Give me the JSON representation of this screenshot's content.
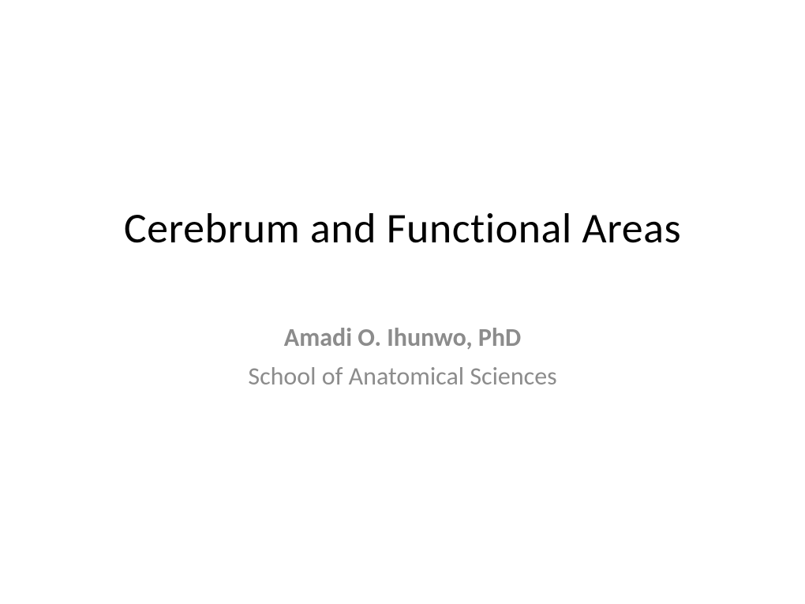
{
  "slide": {
    "title": "Cerebrum and Functional Areas",
    "author": "Amadi O. Ihunwo, PhD",
    "affiliation": "School of Anatomical Sciences",
    "background_color": "#ffffff",
    "title_color": "#000000",
    "subtitle_color": "#8c8c8c",
    "title_fontsize": 54,
    "subtitle_fontsize": 32
  }
}
